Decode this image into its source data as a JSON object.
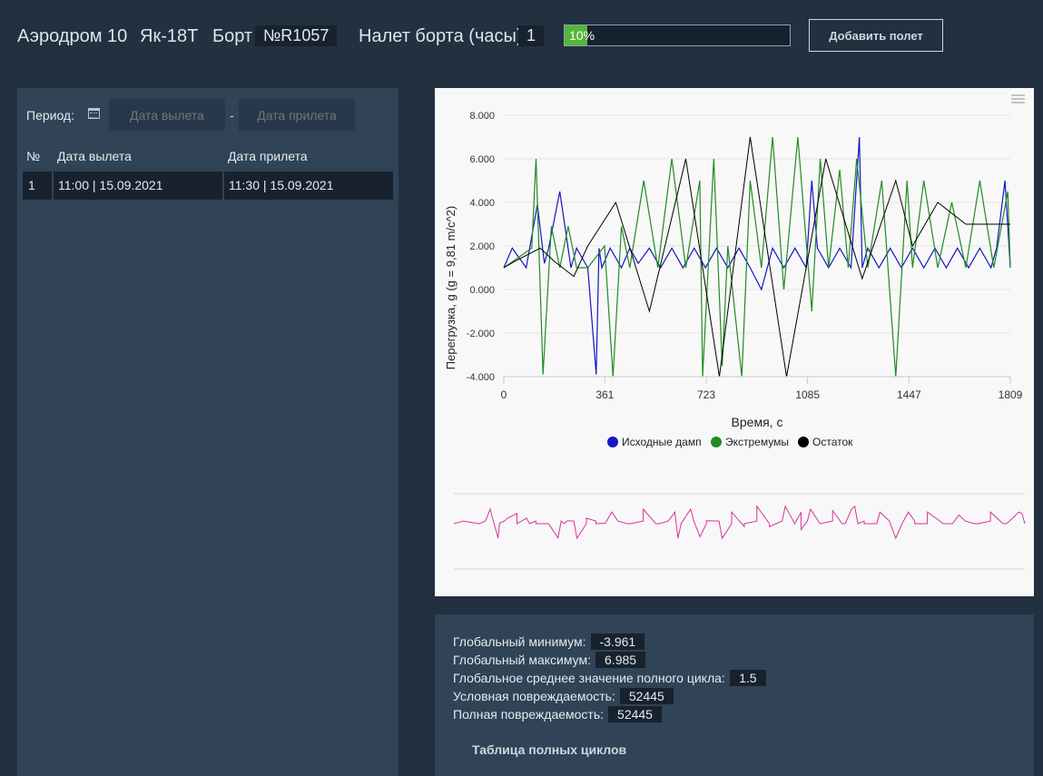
{
  "header": {
    "airfield": "Аэродром 10",
    "aircraft": "Як-18T",
    "board_label": "Борт",
    "board_number": "№R1057",
    "flight_hours_label": "Налет борта (часы)",
    "flight_hours_value": "1",
    "progress_text": "10%",
    "progress_fraction": 0.1,
    "add_flight_button": "Добавить полет"
  },
  "filter": {
    "period_label": "Период:",
    "calendar_icon": "calendar-icon",
    "departure_placeholder": "Дата вылета",
    "separator": "-",
    "arrival_placeholder": "Дата прилета"
  },
  "flights_table": {
    "headers": [
      "№",
      "Дата вылета",
      "Дата прилета"
    ],
    "rows": [
      {
        "num": "1",
        "departure": "11:00  |  15.09.2021",
        "arrival": "11:30  |  15.09.2021"
      }
    ]
  },
  "chart_data": {
    "type": "line",
    "xlabel": "Время, с",
    "ylabel": "Перегрузка, g (g = 9,81 m/c^2)",
    "xlim": [
      0,
      1809
    ],
    "ylim": [
      -4,
      8
    ],
    "x_ticks": [
      "0",
      "361",
      "723",
      "1085",
      "1447",
      "1809"
    ],
    "y_ticks": [
      "8.000",
      "6.000",
      "4.000",
      "2.000",
      "0.000",
      "-2.000",
      "-4.000"
    ],
    "legend_position": "bottom",
    "menu_icon": "hamburger-menu-icon",
    "series": [
      {
        "name": "Исходные дамп",
        "color": "#1515c8",
        "x": [
          0,
          30,
          80,
          120,
          145,
          160,
          200,
          240,
          260,
          300,
          330,
          340,
          350,
          380,
          420,
          450,
          480,
          520,
          560,
          600,
          640,
          680,
          720,
          760,
          800,
          840,
          880,
          920,
          960,
          1000,
          1040,
          1080,
          1100,
          1120,
          1160,
          1200,
          1240,
          1270,
          1280,
          1300,
          1340,
          1380,
          1420,
          1460,
          1500,
          1540,
          1580,
          1620,
          1660,
          1700,
          1740,
          1760,
          1790,
          1809
        ],
        "y": [
          1.0,
          1.9,
          1.0,
          3.9,
          1.2,
          1.9,
          4.5,
          1.0,
          1.9,
          1.0,
          -3.9,
          1.9,
          1.0,
          1.9,
          1.0,
          1.9,
          1.2,
          1.9,
          1.0,
          1.9,
          1.0,
          1.9,
          1.0,
          1.9,
          1.0,
          1.9,
          1.0,
          0.0,
          1.9,
          1.0,
          1.9,
          1.0,
          5.0,
          1.9,
          1.0,
          1.9,
          1.0,
          7.0,
          1.0,
          1.9,
          1.0,
          1.9,
          1.0,
          1.9,
          1.0,
          1.9,
          1.0,
          1.9,
          1.0,
          1.9,
          1.0,
          1.9,
          5.0,
          1.0
        ]
      },
      {
        "name": "Экстремумы",
        "color": "#228b22",
        "x": [
          0,
          100,
          115,
          140,
          170,
          200,
          230,
          260,
          300,
          360,
          390,
          420,
          450,
          500,
          550,
          600,
          650,
          700,
          710,
          750,
          780,
          800,
          850,
          880,
          920,
          960,
          1000,
          1050,
          1100,
          1130,
          1160,
          1200,
          1230,
          1260,
          1300,
          1350,
          1400,
          1440,
          1460,
          1500,
          1550,
          1600,
          1650,
          1700,
          1750,
          1800,
          1809
        ],
        "y": [
          1.0,
          1.9,
          6.0,
          -3.9,
          2.9,
          1.0,
          2.9,
          1.0,
          1.0,
          2.0,
          -4.0,
          2.9,
          1.0,
          5.0,
          1.0,
          6.0,
          1.0,
          5.0,
          -4.0,
          6.0,
          -3.5,
          2.0,
          -4.0,
          5.0,
          1.0,
          7.0,
          0.0,
          7.0,
          -1.0,
          6.0,
          1.0,
          5.5,
          1.0,
          6.0,
          1.0,
          5.0,
          -4.0,
          5.0,
          1.0,
          5.0,
          1.0,
          4.0,
          1.0,
          5.0,
          1.0,
          4.5,
          1.0
        ]
      },
      {
        "name": "Остаток",
        "color": "#000000",
        "x": [
          0,
          40,
          130,
          180,
          250,
          300,
          400,
          520,
          650,
          770,
          880,
          1010,
          1150,
          1280,
          1400,
          1460,
          1550,
          1650,
          1809
        ],
        "y": [
          1.0,
          1.3,
          1.9,
          1.3,
          0.6,
          2.0,
          4.0,
          -1.0,
          6.0,
          -4.0,
          7.0,
          -4.0,
          6.0,
          0.5,
          5.0,
          2.0,
          4.0,
          3.0,
          3.0
        ]
      }
    ],
    "navigator": {
      "color": "#d6339a"
    }
  },
  "stats": {
    "global_min_label": "Глобальный минимум:",
    "global_min_value": "-3.961",
    "global_max_label": "Глобальный максимум:",
    "global_max_value": "6.985",
    "global_mean_label": "Глобальное среднее значение полного цикла:",
    "global_mean_value": "1.5",
    "cond_damage_label": "Условная повреждаемость:",
    "cond_damage_value": "52445",
    "full_damage_label": "Полная повреждаемость:",
    "full_damage_value": "52445",
    "cycles_table_button": "Таблица полных циклов"
  }
}
